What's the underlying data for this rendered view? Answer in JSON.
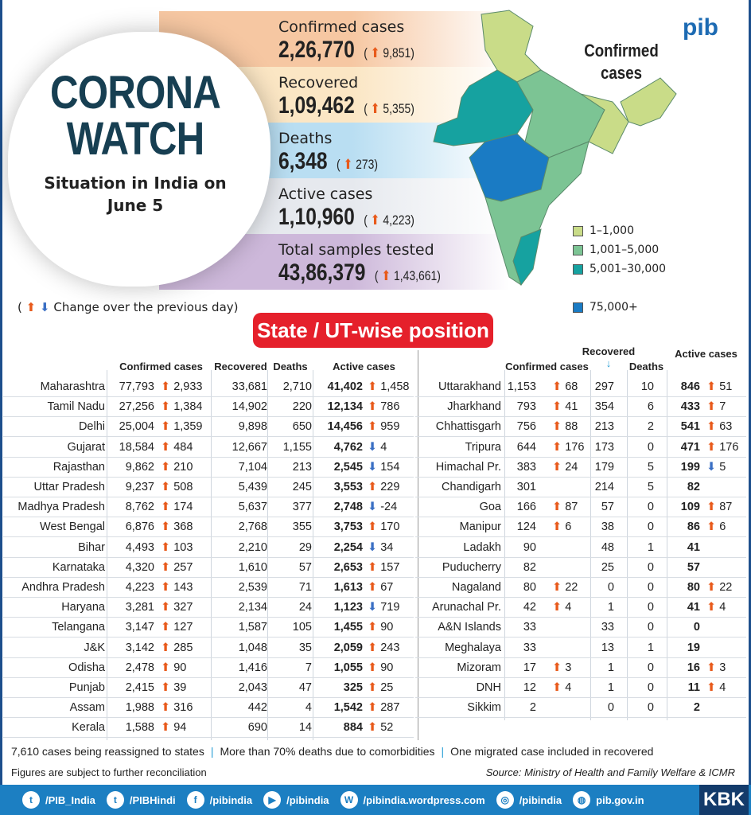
{
  "header": {
    "title_line1": "CORONA",
    "title_line2": "WATCH",
    "subtitle": "Situation in India on June 5"
  },
  "stats": [
    {
      "label": "Confirmed cases",
      "value": "2,26,770",
      "change": "9,851",
      "color": "#f6c7a2"
    },
    {
      "label": "Recovered",
      "value": "1,09,462",
      "change": "5,355",
      "color": "#fbe6c4"
    },
    {
      "label": "Deaths",
      "value": "6,348",
      "change": "273",
      "color": "#b9def2"
    },
    {
      "label": "Active cases",
      "value": "1,10,960",
      "change": "4,223",
      "color": "#e6e9ee"
    },
    {
      "label": "Total samples tested",
      "value": "43,86,379",
      "change": "1,43,661",
      "color": "#cdb8da"
    }
  ],
  "map": {
    "title": "Confirmed cases",
    "legend": [
      {
        "label": "1–1,000",
        "color": "#c9dc88"
      },
      {
        "label": "1,001–5,000",
        "color": "#7cc494"
      },
      {
        "label": "5,001–30,000",
        "color": "#16a2a0"
      },
      {
        "label": "75,000+",
        "color": "#1a7bc4"
      }
    ]
  },
  "logo": "pib",
  "change_note": "Change over the previous day",
  "section_title": "State / UT-wise position",
  "columns": {
    "confirmed": "Confirmed cases",
    "recovered": "Recovered",
    "deaths": "Deaths",
    "active": "Active cases"
  },
  "arrow_colors": {
    "up": "#e85a1b",
    "down": "#3a6fc4"
  },
  "left_rows": [
    {
      "state": "Maharashtra",
      "confirmed": "77,793",
      "c_chg": "2,933",
      "recovered": "33,681",
      "deaths": "2,710",
      "active": "41,402",
      "a_chg": "1,458",
      "a_dir": "up"
    },
    {
      "state": "Tamil Nadu",
      "confirmed": "27,256",
      "c_chg": "1,384",
      "recovered": "14,902",
      "deaths": "220",
      "active": "12,134",
      "a_chg": "786",
      "a_dir": "up"
    },
    {
      "state": "Delhi",
      "confirmed": "25,004",
      "c_chg": "1,359",
      "recovered": "9,898",
      "deaths": "650",
      "active": "14,456",
      "a_chg": "959",
      "a_dir": "up"
    },
    {
      "state": "Gujarat",
      "confirmed": "18,584",
      "c_chg": "484",
      "recovered": "12,667",
      "deaths": "1,155",
      "active": "4,762",
      "a_chg": "4",
      "a_dir": "down"
    },
    {
      "state": "Rajasthan",
      "confirmed": "9,862",
      "c_chg": "210",
      "recovered": "7,104",
      "deaths": "213",
      "active": "2,545",
      "a_chg": "154",
      "a_dir": "down"
    },
    {
      "state": "Uttar Pradesh",
      "confirmed": "9,237",
      "c_chg": "508",
      "recovered": "5,439",
      "deaths": "245",
      "active": "3,553",
      "a_chg": "229",
      "a_dir": "up"
    },
    {
      "state": "Madhya Pradesh",
      "confirmed": "8,762",
      "c_chg": "174",
      "recovered": "5,637",
      "deaths": "377",
      "active": "2,748",
      "a_chg": "-24",
      "a_dir": "down"
    },
    {
      "state": "West Bengal",
      "confirmed": "6,876",
      "c_chg": "368",
      "recovered": "2,768",
      "deaths": "355",
      "active": "3,753",
      "a_chg": "170",
      "a_dir": "up"
    },
    {
      "state": "Bihar",
      "confirmed": "4,493",
      "c_chg": "103",
      "recovered": "2,210",
      "deaths": "29",
      "active": "2,254",
      "a_chg": "34",
      "a_dir": "down"
    },
    {
      "state": "Karnataka",
      "confirmed": "4,320",
      "c_chg": "257",
      "recovered": "1,610",
      "deaths": "57",
      "active": "2,653",
      "a_chg": "157",
      "a_dir": "up"
    },
    {
      "state": "Andhra Pradesh",
      "confirmed": "4,223",
      "c_chg": "143",
      "recovered": "2,539",
      "deaths": "71",
      "active": "1,613",
      "a_chg": "67",
      "a_dir": "up"
    },
    {
      "state": "Haryana",
      "confirmed": "3,281",
      "c_chg": "327",
      "recovered": "2,134",
      "deaths": "24",
      "active": "1,123",
      "a_chg": "719",
      "a_dir": "down"
    },
    {
      "state": "Telangana",
      "confirmed": "3,147",
      "c_chg": "127",
      "recovered": "1,587",
      "deaths": "105",
      "active": "1,455",
      "a_chg": "90",
      "a_dir": "up"
    },
    {
      "state": "J&K",
      "confirmed": "3,142",
      "c_chg": "285",
      "recovered": "1,048",
      "deaths": "35",
      "active": "2,059",
      "a_chg": "243",
      "a_dir": "up"
    },
    {
      "state": "Odisha",
      "confirmed": "2,478",
      "c_chg": "90",
      "recovered": "1,416",
      "deaths": "7",
      "active": "1,055",
      "a_chg": "90",
      "a_dir": "up"
    },
    {
      "state": "Punjab",
      "confirmed": "2,415",
      "c_chg": "39",
      "recovered": "2,043",
      "deaths": "47",
      "active": "325",
      "a_chg": "25",
      "a_dir": "up"
    },
    {
      "state": "Assam",
      "confirmed": "1,988",
      "c_chg": "316",
      "recovered": "442",
      "deaths": "4",
      "active": "1,542",
      "a_chg": "287",
      "a_dir": "up"
    },
    {
      "state": "Kerala",
      "confirmed": "1,588",
      "c_chg": "94",
      "recovered": "690",
      "deaths": "14",
      "active": "884",
      "a_chg": "52",
      "a_dir": "up"
    }
  ],
  "right_rows": [
    {
      "state": "Uttarakhand",
      "confirmed": "1,153",
      "c_chg": "68",
      "recovered": "297",
      "deaths": "10",
      "active": "846",
      "a_chg": "51",
      "a_dir": "up"
    },
    {
      "state": "Jharkhand",
      "confirmed": "793",
      "c_chg": "41",
      "recovered": "354",
      "deaths": "6",
      "active": "433",
      "a_chg": "7",
      "a_dir": "up"
    },
    {
      "state": "Chhattisgarh",
      "confirmed": "756",
      "c_chg": "88",
      "recovered": "213",
      "deaths": "2",
      "active": "541",
      "a_chg": "63",
      "a_dir": "up"
    },
    {
      "state": "Tripura",
      "confirmed": "644",
      "c_chg": "176",
      "recovered": "173",
      "deaths": "0",
      "active": "471",
      "a_chg": "176",
      "a_dir": "up"
    },
    {
      "state": "Himachal Pr.",
      "confirmed": "383",
      "c_chg": "24",
      "recovered": "179",
      "deaths": "5",
      "active": "199",
      "a_chg": "5",
      "a_dir": "down"
    },
    {
      "state": "Chandigarh",
      "confirmed": "301",
      "c_chg": "",
      "recovered": "214",
      "deaths": "5",
      "active": "82",
      "a_chg": "",
      "a_dir": ""
    },
    {
      "state": "Goa",
      "confirmed": "166",
      "c_chg": "87",
      "recovered": "57",
      "deaths": "0",
      "active": "109",
      "a_chg": "87",
      "a_dir": "up"
    },
    {
      "state": "Manipur",
      "confirmed": "124",
      "c_chg": "6",
      "recovered": "38",
      "deaths": "0",
      "active": "86",
      "a_chg": "6",
      "a_dir": "up"
    },
    {
      "state": "Ladakh",
      "confirmed": "90",
      "c_chg": "",
      "recovered": "48",
      "deaths": "1",
      "active": "41",
      "a_chg": "",
      "a_dir": ""
    },
    {
      "state": "Puducherry",
      "confirmed": "82",
      "c_chg": "",
      "recovered": "25",
      "deaths": "0",
      "active": "57",
      "a_chg": "",
      "a_dir": ""
    },
    {
      "state": "Nagaland",
      "confirmed": "80",
      "c_chg": "22",
      "recovered": "0",
      "deaths": "0",
      "active": "80",
      "a_chg": "22",
      "a_dir": "up"
    },
    {
      "state": "Arunachal Pr.",
      "confirmed": "42",
      "c_chg": "4",
      "recovered": "1",
      "deaths": "0",
      "active": "41",
      "a_chg": "4",
      "a_dir": "up"
    },
    {
      "state": "A&N Islands",
      "confirmed": "33",
      "c_chg": "",
      "recovered": "33",
      "deaths": "0",
      "active": "0",
      "a_chg": "",
      "a_dir": ""
    },
    {
      "state": "Meghalaya",
      "confirmed": "33",
      "c_chg": "",
      "recovered": "13",
      "deaths": "1",
      "active": "19",
      "a_chg": "",
      "a_dir": ""
    },
    {
      "state": "Mizoram",
      "confirmed": "17",
      "c_chg": "3",
      "recovered": "1",
      "deaths": "0",
      "active": "16",
      "a_chg": "3",
      "a_dir": "up"
    },
    {
      "state": "DNH",
      "confirmed": "12",
      "c_chg": "4",
      "recovered": "1",
      "deaths": "0",
      "active": "11",
      "a_chg": "4",
      "a_dir": "up"
    },
    {
      "state": "Sikkim",
      "confirmed": "2",
      "c_chg": "",
      "recovered": "0",
      "deaths": "0",
      "active": "2",
      "a_chg": "",
      "a_dir": ""
    }
  ],
  "footnotes": [
    "7,610 cases being reassigned to states",
    "More than 70% deaths due to comorbidities",
    "One migrated case included in recovered"
  ],
  "footnote2": "Figures are subject to further reconciliation",
  "source": "Source: Ministry of Health and Family Welfare & ICMR",
  "social": [
    {
      "icon": "twitter-icon",
      "glyph": "t",
      "label": "/PIB_India"
    },
    {
      "icon": "twitter-icon",
      "glyph": "t",
      "label": "/PIBHindi"
    },
    {
      "icon": "facebook-icon",
      "glyph": "f",
      "label": "/pibindia"
    },
    {
      "icon": "youtube-icon",
      "glyph": "▶",
      "label": "/pibindia"
    },
    {
      "icon": "wordpress-icon",
      "glyph": "W",
      "label": "/pibindia.wordpress.com"
    },
    {
      "icon": "instagram-icon",
      "glyph": "◎",
      "label": "/pibindia"
    },
    {
      "icon": "globe-icon",
      "glyph": "◍",
      "label": "pib.gov.in"
    }
  ],
  "brand": "KBK"
}
